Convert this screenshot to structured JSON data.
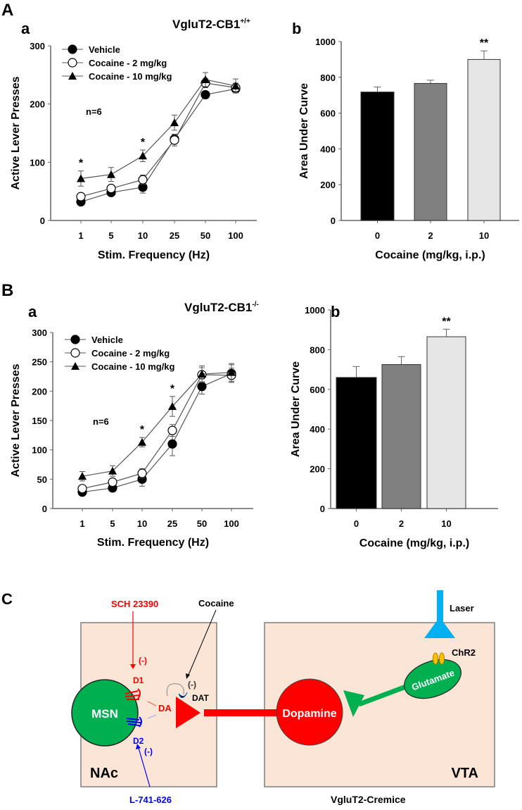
{
  "panel_labels": {
    "A": "A",
    "B": "B",
    "C": "C",
    "a": "a",
    "b": "b"
  },
  "chart_data": [
    {
      "id": "A-a",
      "type": "line",
      "title": "VgluT2-CB1",
      "title_sup": "+/+",
      "xlabel": "Stim. Frequency (Hz)",
      "ylabel": "Active Lever Presses",
      "categories": [
        "1",
        "5",
        "10",
        "25",
        "50",
        "100"
      ],
      "ylim": [
        0,
        300
      ],
      "yticks": [
        0,
        100,
        200,
        300
      ],
      "annotation": "n=6",
      "significance": [
        {
          "category": "1",
          "label": "*"
        },
        {
          "category": "10",
          "label": "*"
        }
      ],
      "legend_position": "top-left",
      "series": [
        {
          "name": "Vehicle",
          "marker": "filled-circle",
          "values": [
            32,
            48,
            57,
            140,
            216,
            226
          ],
          "errors": [
            4,
            4,
            10,
            8,
            5,
            6
          ]
        },
        {
          "name": "Cocaine - 2 mg/kg",
          "marker": "open-circle",
          "values": [
            41,
            55,
            70,
            138,
            236,
            228
          ],
          "errors": [
            4,
            5,
            8,
            10,
            8,
            8
          ]
        },
        {
          "name": "Cocaine - 10 mg/kg",
          "marker": "filled-triangle",
          "values": [
            72,
            79,
            111,
            168,
            242,
            231
          ],
          "errors": [
            13,
            12,
            10,
            13,
            12,
            12
          ]
        }
      ]
    },
    {
      "id": "A-b",
      "type": "bar",
      "xlabel": "Cocaine (mg/kg, i.p.)",
      "ylabel": "Area Under Curve",
      "categories": [
        "0",
        "2",
        "10"
      ],
      "values": [
        718,
        766,
        900
      ],
      "errors": [
        28,
        18,
        48
      ],
      "colors": [
        "#000000",
        "#808080",
        "#e6e6e6"
      ],
      "ylim": [
        0,
        1000
      ],
      "yticks": [
        0,
        200,
        400,
        600,
        800,
        1000
      ],
      "significance": [
        {
          "category": "10",
          "label": "**"
        }
      ]
    },
    {
      "id": "B-a",
      "type": "line",
      "title": "VgluT2-CB1",
      "title_sup": "-/-",
      "xlabel": "Stim. Frequency (Hz)",
      "ylabel": "Active Lever Presses",
      "categories": [
        "1",
        "5",
        "10",
        "25",
        "50",
        "100"
      ],
      "ylim": [
        0,
        300
      ],
      "yticks": [
        0,
        50,
        100,
        150,
        200,
        250,
        300
      ],
      "annotation": "n=6",
      "significance": [
        {
          "category": "10",
          "label": "*"
        },
        {
          "category": "25",
          "label": "*"
        }
      ],
      "legend_position": "top-left",
      "series": [
        {
          "name": "Vehicle",
          "marker": "filled-circle",
          "values": [
            28,
            35,
            50,
            110,
            208,
            230
          ],
          "errors": [
            4,
            5,
            12,
            20,
            13,
            15
          ]
        },
        {
          "name": "Cocaine - 2 mg/kg",
          "marker": "open-circle",
          "values": [
            34,
            45,
            60,
            133,
            228,
            227
          ],
          "errors": [
            5,
            5,
            8,
            10,
            12,
            12
          ]
        },
        {
          "name": "Cocaine - 10 mg/kg",
          "marker": "filled-triangle",
          "values": [
            55,
            64,
            113,
            174,
            229,
            232
          ],
          "errors": [
            8,
            9,
            8,
            17,
            14,
            15
          ]
        }
      ]
    },
    {
      "id": "B-b",
      "type": "bar",
      "xlabel": "Cocaine (mg/kg, i.p.)",
      "ylabel": "Area Under Curve",
      "categories": [
        "0",
        "2",
        "10"
      ],
      "values": [
        660,
        725,
        865
      ],
      "errors": [
        55,
        40,
        38
      ],
      "colors": [
        "#000000",
        "#808080",
        "#e6e6e6"
      ],
      "ylim": [
        0,
        1000
      ],
      "yticks": [
        0,
        200,
        400,
        600,
        800,
        1000
      ],
      "significance": [
        {
          "category": "10",
          "label": "**"
        }
      ]
    }
  ],
  "diagram": {
    "sch": "SCH 23390",
    "cocaine": "Cocaine",
    "neg": "(-)",
    "d1": "D1",
    "d2": "D2",
    "da": "DA",
    "dat": "DAT",
    "msn": "MSN",
    "nac": "NAc",
    "l741": "L-741-626",
    "dopamine": "Dopamine",
    "glutamate": "Glutamate",
    "chr2": "ChR2",
    "laser": "Laser",
    "vta": "VTA",
    "mice": "VgluT2-Cremice",
    "colors": {
      "box": "#fbe5d6",
      "msn": "#00b050",
      "dopamine": "#ff0000",
      "laser": "#00b0f0",
      "chr2": "#ffc000",
      "d1": "#ff0000",
      "d2": "#0000ff"
    }
  }
}
